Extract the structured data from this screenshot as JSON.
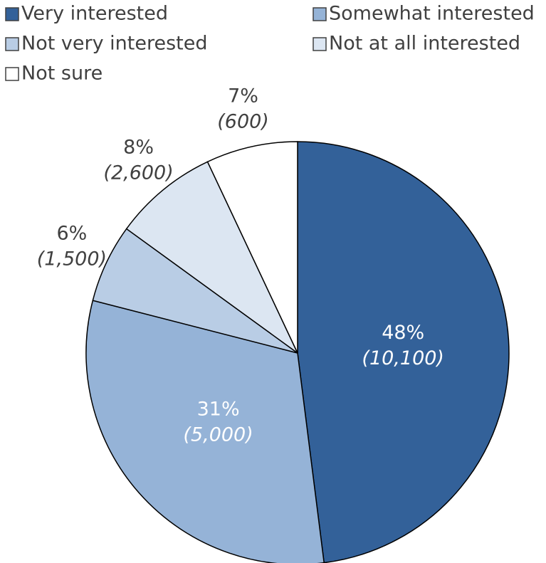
{
  "chart_data": {
    "type": "pie",
    "labels": [
      "Very interested",
      "Somewhat interested",
      "Not very interested",
      "Not at all interested",
      "Not sure"
    ],
    "values": [
      48,
      31,
      6,
      8,
      7
    ],
    "value_labels": [
      "48%",
      "31%",
      "6%",
      "8%",
      "7%"
    ],
    "count_labels": [
      "(10,100)",
      "(5,000)",
      "(1,500)",
      "(2,600)",
      "(600)"
    ],
    "colors": [
      "#336199",
      "#95b3d7",
      "#b9cde5",
      "#dce6f2",
      "#ffffff"
    ],
    "legend": "top"
  }
}
